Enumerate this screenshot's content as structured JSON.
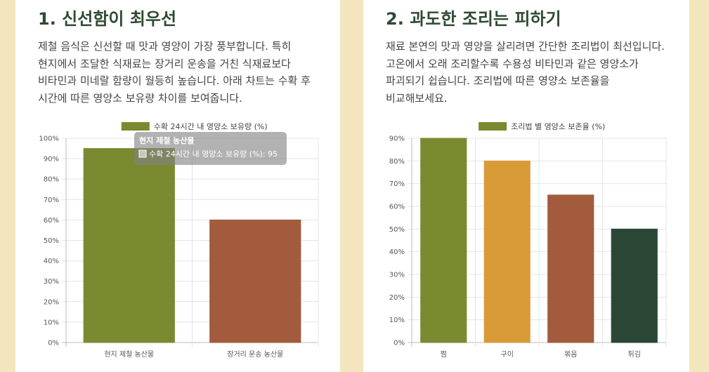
{
  "sections": [
    {
      "title": "1. 신선함이 최우선",
      "description": "제철 음식은 신선할 때 맛과 영양이 가장 풍부합니다. 특히 현지에서 조달한 식재료는 장거리 운송을 거친 식재료보다 비타민과 미네랄 함량이 월등히 높습니다. 아래 차트는 수확 후 시간에 따른 영양소 보유량 차이를 보여줍니다."
    },
    {
      "title": "2. 과도한 조리는 피하기",
      "description": "재료 본연의 맛과 영양을 살리려면 간단한 조리법이 최선입니다. 고온에서 오래 조리할수록 수용성 비타민과 같은 영양소가 파괴되기 쉽습니다. 조리법에 따른 영양소 보존율을 비교해보세요."
    }
  ],
  "chart_data": [
    {
      "type": "bar",
      "categories": [
        "현지 제철 농산물",
        "장거리 운송 농산물"
      ],
      "series": [
        {
          "name": "수확 24시간 내 영양소 보유량 (%)",
          "values": [
            95,
            60
          ]
        }
      ],
      "bar_colors": [
        "#7a8a30",
        "#a25b3d"
      ],
      "ylim": [
        0,
        100
      ],
      "y_ticks": [
        "0%",
        "10%",
        "20%",
        "30%",
        "40%",
        "50%",
        "60%",
        "70%",
        "80%",
        "90%",
        "100%"
      ],
      "grid": true,
      "legend_position": "top",
      "tooltip": {
        "title": "현지 제철 농산물",
        "body": "수확 24시간 내 영양소 보유량 (%): 95"
      }
    },
    {
      "type": "bar",
      "categories": [
        "찜",
        "구이",
        "볶음",
        "튀김"
      ],
      "series": [
        {
          "name": "조리법 별 영양소 보존율 (%)",
          "values": [
            90,
            80,
            65,
            50
          ]
        }
      ],
      "bar_colors": [
        "#7a8a30",
        "#d99a38",
        "#a25b3d",
        "#2a4735"
      ],
      "ylim": [
        0,
        90
      ],
      "y_ticks": [
        "0%",
        "10%",
        "20%",
        "30%",
        "40%",
        "50%",
        "60%",
        "70%",
        "80%",
        "90%"
      ],
      "grid": true,
      "legend_position": "top"
    }
  ]
}
